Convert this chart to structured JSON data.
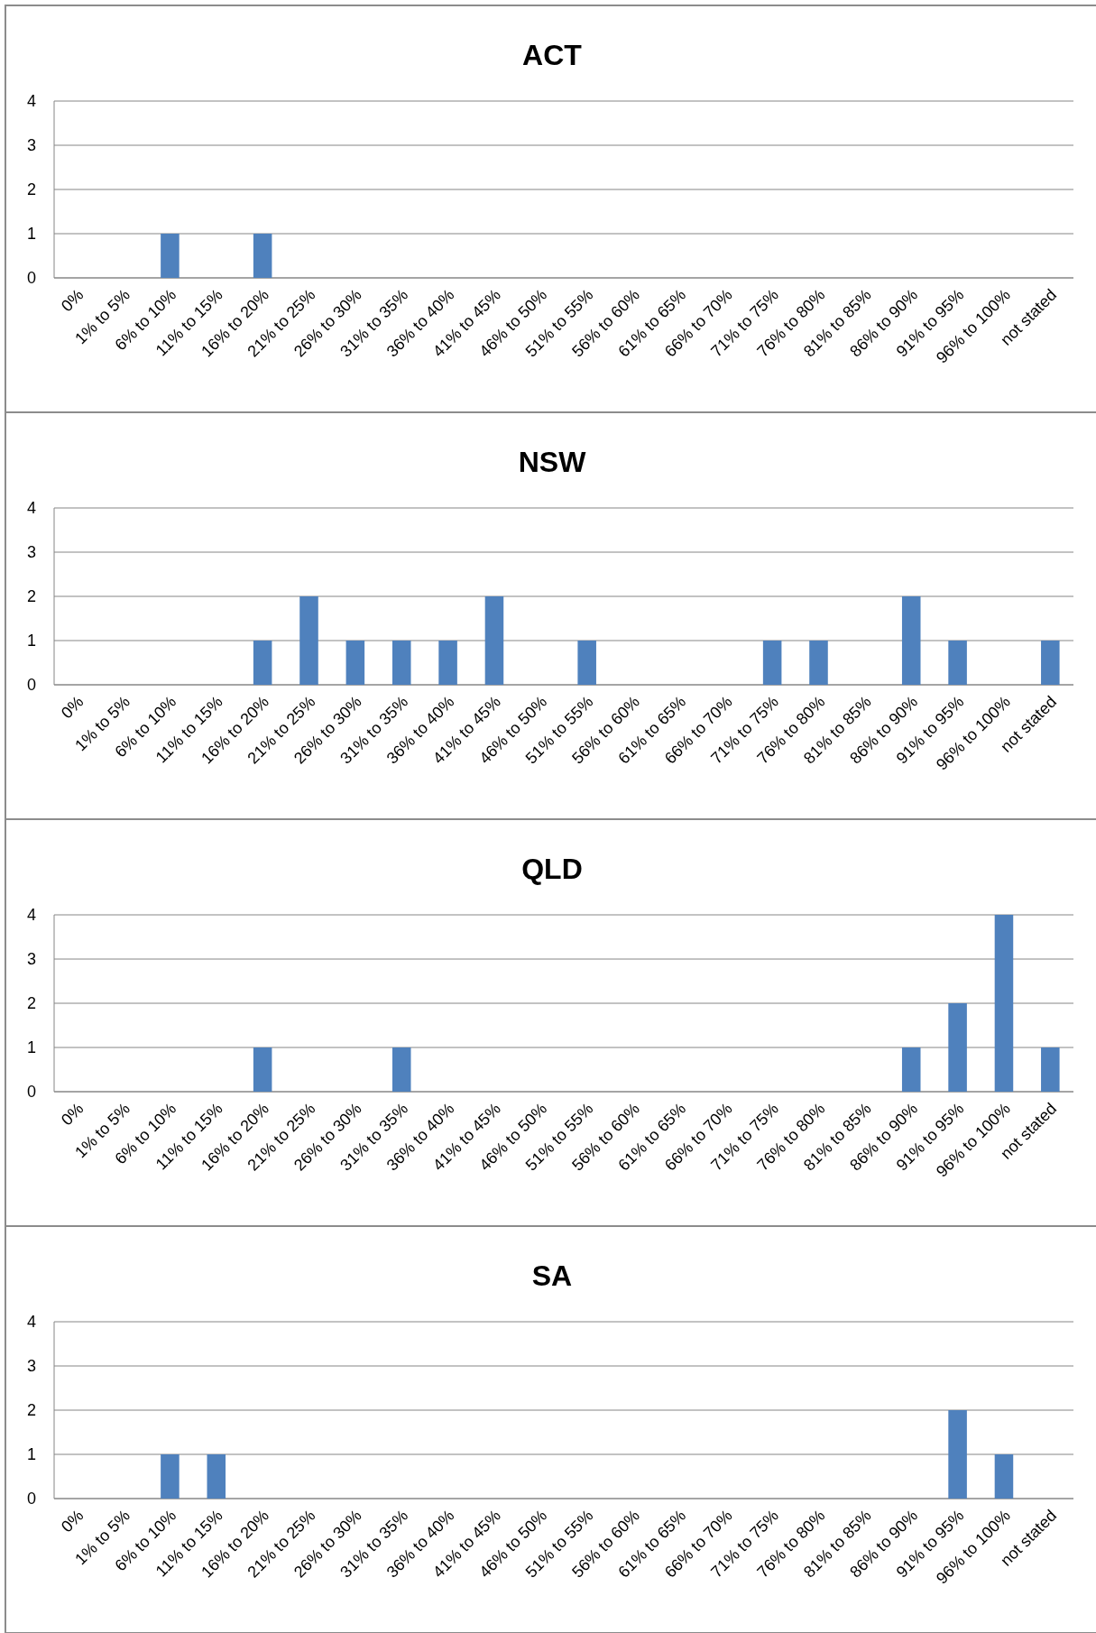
{
  "chart_data": [
    {
      "type": "bar",
      "title": "ACT",
      "categories": [
        "0%",
        "1% to 5%",
        "6% to 10%",
        "11% to 15%",
        "16% to 20%",
        "21% to 25%",
        "26% to 30%",
        "31% to 35%",
        "36% to 40%",
        "41% to 45%",
        "46% to 50%",
        "51% to 55%",
        "56% to 60%",
        "61% to 65%",
        "66% to 70%",
        "71% to 75%",
        "76% to 80%",
        "81% to 85%",
        "86% to 90%",
        "91% to 95%",
        "96% to 100%",
        "not stated"
      ],
      "values": [
        0,
        0,
        1,
        0,
        1,
        0,
        0,
        0,
        0,
        0,
        0,
        0,
        0,
        0,
        0,
        0,
        0,
        0,
        0,
        0,
        0,
        0
      ],
      "color": "#4f81bd",
      "ylim": [
        0,
        4
      ],
      "yticks": [
        0,
        1,
        2,
        3,
        4
      ],
      "grid": "y"
    },
    {
      "type": "bar",
      "title": "NSW",
      "categories": [
        "0%",
        "1% to 5%",
        "6% to 10%",
        "11% to 15%",
        "16% to 20%",
        "21% to 25%",
        "26% to 30%",
        "31% to 35%",
        "36% to 40%",
        "41% to 45%",
        "46% to 50%",
        "51% to 55%",
        "56% to 60%",
        "61% to 65%",
        "66% to 70%",
        "71% to 75%",
        "76% to 80%",
        "81% to 85%",
        "86% to 90%",
        "91% to 95%",
        "96% to 100%",
        "not stated"
      ],
      "values": [
        0,
        0,
        0,
        0,
        1,
        2,
        1,
        1,
        1,
        2,
        0,
        1,
        0,
        0,
        0,
        1,
        1,
        0,
        2,
        1,
        0,
        1
      ],
      "color": "#4f81bd",
      "ylim": [
        0,
        4
      ],
      "yticks": [
        0,
        1,
        2,
        3,
        4
      ],
      "grid": "y"
    },
    {
      "type": "bar",
      "title": "QLD",
      "categories": [
        "0%",
        "1% to 5%",
        "6% to 10%",
        "11% to 15%",
        "16% to 20%",
        "21% to 25%",
        "26% to 30%",
        "31% to 35%",
        "36% to 40%",
        "41% to 45%",
        "46% to 50%",
        "51% to 55%",
        "56% to 60%",
        "61% to 65%",
        "66% to 70%",
        "71% to 75%",
        "76% to 80%",
        "81% to 85%",
        "86% to 90%",
        "91% to 95%",
        "96% to 100%",
        "not stated"
      ],
      "values": [
        0,
        0,
        0,
        0,
        1,
        0,
        0,
        1,
        0,
        0,
        0,
        0,
        0,
        0,
        0,
        0,
        0,
        0,
        1,
        2,
        4,
        1
      ],
      "color": "#4f81bd",
      "ylim": [
        0,
        4
      ],
      "yticks": [
        0,
        1,
        2,
        3,
        4
      ],
      "grid": "y"
    },
    {
      "type": "bar",
      "title": "SA",
      "categories": [
        "0%",
        "1% to 5%",
        "6% to 10%",
        "11% to 15%",
        "16% to 20%",
        "21% to 25%",
        "26% to 30%",
        "31% to 35%",
        "36% to 40%",
        "41% to 45%",
        "46% to 50%",
        "51% to 55%",
        "56% to 60%",
        "61% to 65%",
        "66% to 70%",
        "71% to 75%",
        "76% to 80%",
        "81% to 85%",
        "86% to 90%",
        "91% to 95%",
        "96% to 100%",
        "not stated"
      ],
      "values": [
        0,
        0,
        1,
        1,
        0,
        0,
        0,
        0,
        0,
        0,
        0,
        0,
        0,
        0,
        0,
        0,
        0,
        0,
        0,
        2,
        1,
        0
      ],
      "color": "#4f81bd",
      "ylim": [
        0,
        4
      ],
      "yticks": [
        0,
        1,
        2,
        3,
        4
      ],
      "grid": "y"
    }
  ]
}
